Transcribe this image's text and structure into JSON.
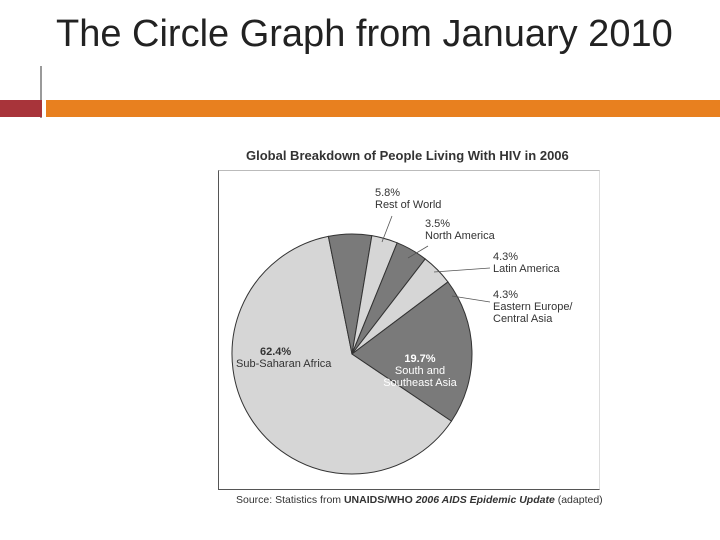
{
  "slide": {
    "title": "The Circle Graph from January 2010",
    "colors": {
      "accent_orange": "#e8801f",
      "accent_red": "#a8343a"
    }
  },
  "chart_data": {
    "type": "pie",
    "title": "Global Breakdown of People Living With HIV in 2006",
    "slices": [
      {
        "label": "Sub-Saharan Africa",
        "value": 62.4,
        "value_label": "62.4%",
        "color": "#d6d6d6"
      },
      {
        "label": "Rest of World",
        "value": 5.8,
        "value_label": "5.8%",
        "color": "#7a7a7a"
      },
      {
        "label": "North America",
        "value": 3.5,
        "value_label": "3.5%",
        "color": "#d6d6d6"
      },
      {
        "label": "Latin America",
        "value": 4.3,
        "value_label": "4.3%",
        "color": "#7a7a7a"
      },
      {
        "label": "Eastern Europe/ Central Asia",
        "value": 4.3,
        "value_label": "4.3%",
        "color": "#d6d6d6"
      },
      {
        "label": "South and Southeast Asia",
        "value": 19.7,
        "value_label": "19.7%",
        "color": "#7a7a7a"
      }
    ],
    "source": {
      "prefix": "Source: Statistics from ",
      "org": "UNAIDS/WHO",
      "publication": "2006 AIDS Epidemic Update",
      "suffix": " (adapted)"
    }
  }
}
